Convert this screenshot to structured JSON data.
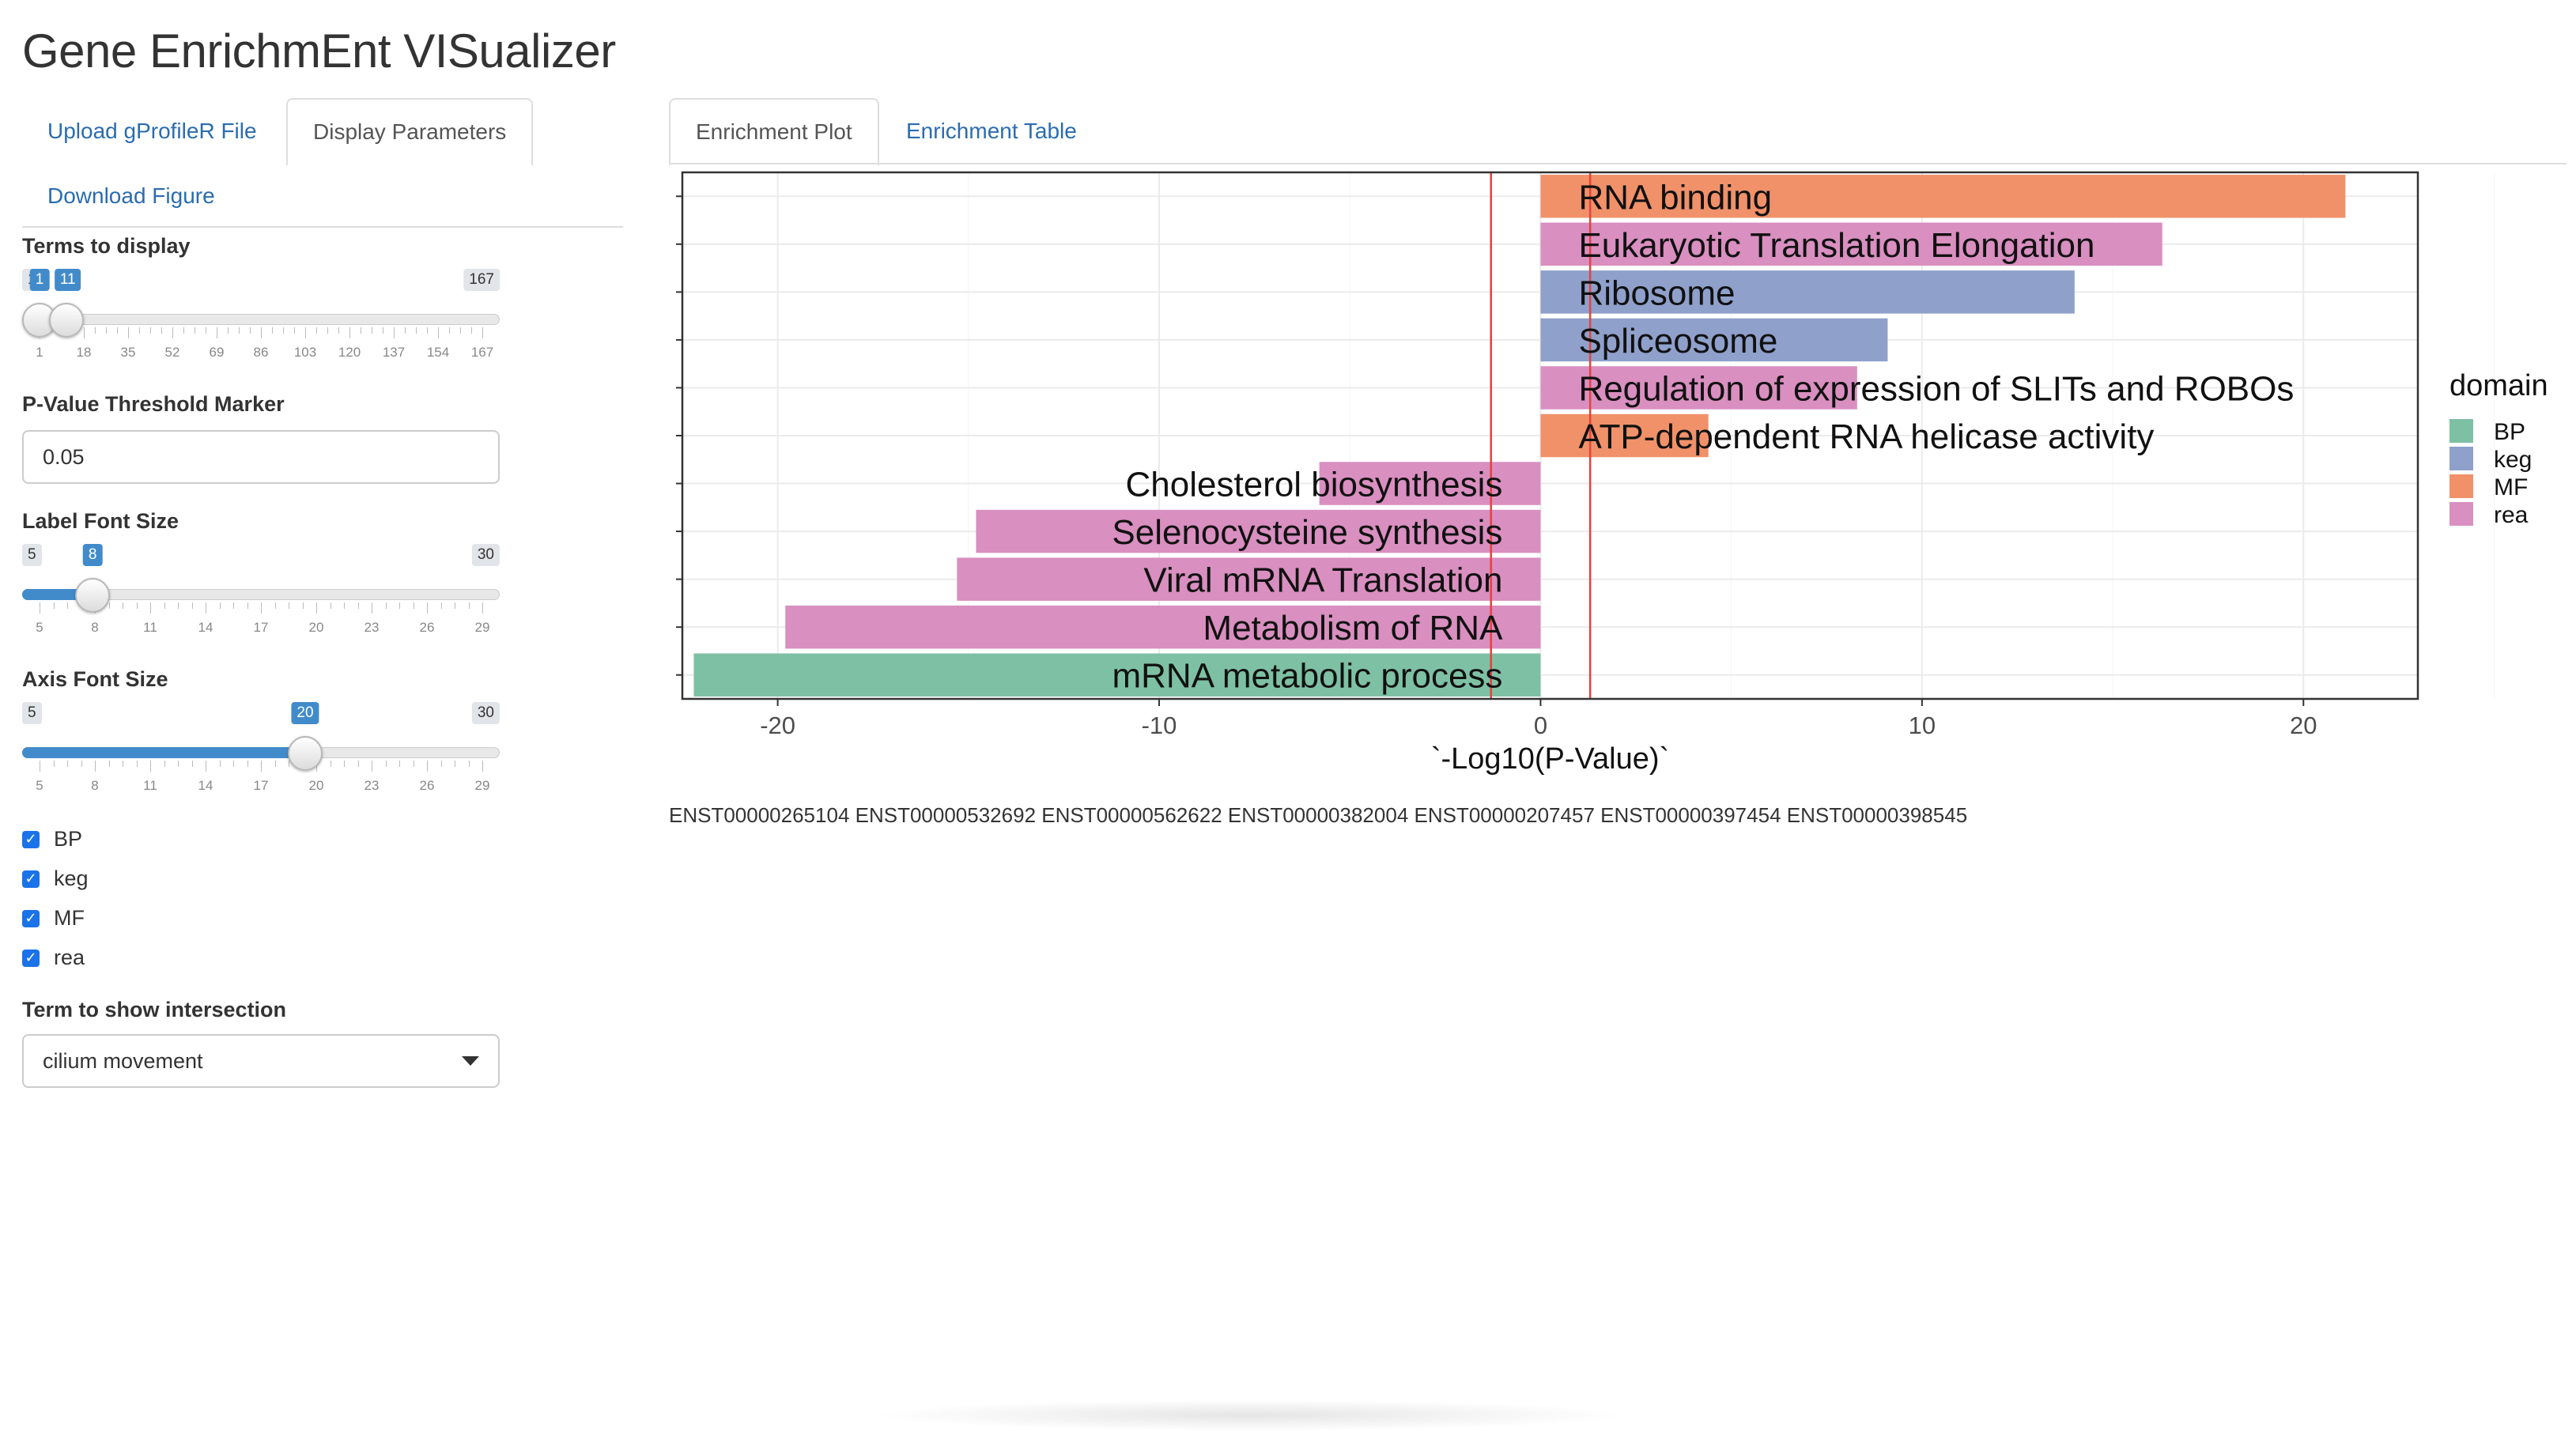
{
  "app": {
    "title": "Gene EnrichmEnt VISualizer"
  },
  "sidebar": {
    "tabs": [
      {
        "label": "Upload gProfileR File",
        "active": false
      },
      {
        "label": "Display Parameters",
        "active": true
      },
      {
        "label": "Download Figure",
        "active": false
      }
    ],
    "terms_slider": {
      "label": "Terms to display",
      "min": 1,
      "max": 167,
      "value_low": 1,
      "value_high": 11,
      "min_label": "1",
      "max_label": "167",
      "low_label": "1",
      "high_label": "11",
      "ticks": [
        "1",
        "18",
        "35",
        "52",
        "69",
        "86",
        "103",
        "120",
        "137",
        "154",
        "167"
      ]
    },
    "pvalue": {
      "label": "P-Value Threshold Marker",
      "value": "0.05"
    },
    "label_font_slider": {
      "label": "Label Font Size",
      "min": 5,
      "max": 30,
      "value": 8,
      "min_label": "5",
      "max_label": "30",
      "value_label": "8",
      "ticks": [
        "5",
        "8",
        "11",
        "14",
        "17",
        "20",
        "23",
        "26",
        "29"
      ]
    },
    "axis_font_slider": {
      "label": "Axis Font Size",
      "min": 5,
      "max": 30,
      "value": 20,
      "min_label": "5",
      "max_label": "30",
      "value_label": "20",
      "ticks": [
        "5",
        "8",
        "11",
        "14",
        "17",
        "20",
        "23",
        "26",
        "29"
      ]
    },
    "domains": [
      {
        "label": "BP",
        "checked": true
      },
      {
        "label": "keg",
        "checked": true
      },
      {
        "label": "MF",
        "checked": true
      },
      {
        "label": "rea",
        "checked": true
      }
    ],
    "intersection": {
      "label": "Term to show intersection",
      "selected": "cilium movement"
    }
  },
  "main": {
    "tabs": [
      {
        "label": "Enrichment Plot",
        "active": true
      },
      {
        "label": "Enrichment Table",
        "active": false
      }
    ],
    "footer_ids": "ENST00000265104 ENST00000532692 ENST00000562622 ENST00000382004 ENST00000207457 ENST00000397454 ENST00000398545"
  },
  "chart_data": {
    "type": "bar",
    "orientation": "horizontal",
    "title": "",
    "xlabel": "`-Log10(P-Value)`",
    "ylabel": "",
    "xlim": [
      -22.5,
      23
    ],
    "xticks": [
      -20,
      -10,
      0,
      10,
      20
    ],
    "grid": true,
    "legend": {
      "title": "domain",
      "position": "right"
    },
    "threshold_lines": [
      -1.3,
      1.3
    ],
    "threshold_color": "#e8413a",
    "domain_colors": {
      "BP": "#7ec0a4",
      "keg": "#8fa0cb",
      "MF": "#f0916a",
      "rea": "#d98fc0"
    },
    "bars": [
      {
        "label": "RNA binding",
        "value": 21.1,
        "domain": "MF"
      },
      {
        "label": "Eukaryotic Translation Elongation",
        "value": 16.3,
        "domain": "rea"
      },
      {
        "label": "Ribosome",
        "value": 14.0,
        "domain": "keg"
      },
      {
        "label": "Spliceosome",
        "value": 9.1,
        "domain": "keg"
      },
      {
        "label": "Regulation of expression of SLITs and ROBOs",
        "value": 8.3,
        "domain": "rea"
      },
      {
        "label": "ATP-dependent RNA helicase activity",
        "value": 4.4,
        "domain": "MF"
      },
      {
        "label": "Cholesterol biosynthesis",
        "value": -5.8,
        "domain": "rea"
      },
      {
        "label": "Selenocysteine synthesis",
        "value": -14.8,
        "domain": "rea"
      },
      {
        "label": "Viral mRNA Translation",
        "value": -15.3,
        "domain": "rea"
      },
      {
        "label": "Metabolism of RNA",
        "value": -19.8,
        "domain": "rea"
      },
      {
        "label": "mRNA metabolic process",
        "value": -22.2,
        "domain": "BP"
      }
    ]
  }
}
